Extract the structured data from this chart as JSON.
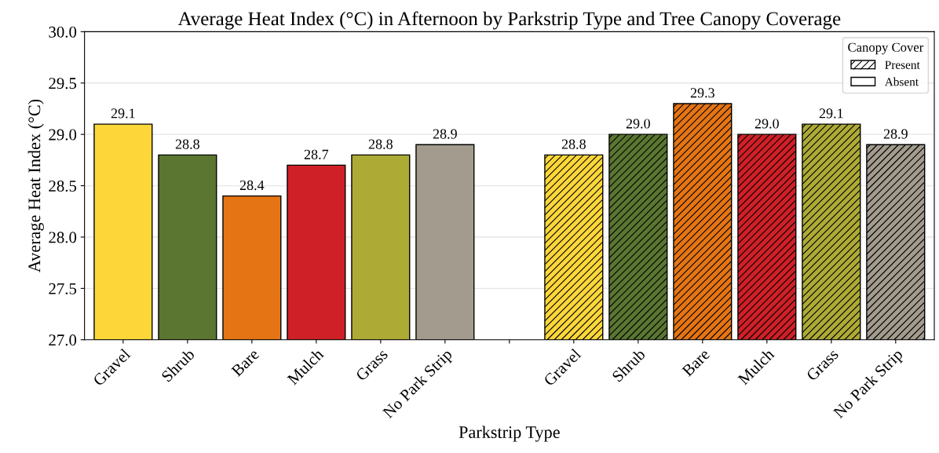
{
  "chart_data": {
    "type": "bar",
    "title": "Average Heat Index (°C) in Afternoon by Parkstrip Type and Tree Canopy Coverage",
    "xlabel": "Parkstrip Type",
    "ylabel": "Average Heat Index (°C)",
    "legend_title": "Canopy Cover",
    "categories": [
      "Gravel",
      "Shrub",
      "Bare",
      "Mulch",
      "Grass",
      "No Park Strip",
      null,
      "Gravel",
      "Shrub",
      "Bare",
      "Mulch",
      "Grass",
      "No Park Strip"
    ],
    "series": [
      {
        "name": "Present",
        "color": "#ffffff",
        "value_labels": [
          null,
          null,
          null,
          null,
          null,
          null,
          null,
          "28.8",
          "29.0",
          "29.3",
          "29.0",
          "29.1",
          "28.9"
        ],
        "colors": [
          null,
          null,
          null,
          null,
          null,
          null,
          null,
          "#fdd73a",
          "#5a7631",
          "#e57514",
          "#cf2027",
          "#adaa36",
          "#a39c8e"
        ],
        "values": [
          null,
          null,
          null,
          null,
          null,
          null,
          null,
          28.8,
          29.0,
          29.3,
          29.0,
          29.1,
          28.9
        ]
      },
      {
        "name": "Absent",
        "color": "#ffffff",
        "value_labels": [
          "29.1",
          "28.8",
          "28.4",
          "28.7",
          "28.8",
          "28.9",
          null,
          null,
          null,
          null,
          null,
          null,
          null
        ],
        "colors": [
          "#fdd73a",
          "#5a7631",
          "#e57514",
          "#cf2027",
          "#adaa36",
          "#a39c8e",
          null,
          null,
          null,
          null,
          null,
          null,
          null
        ],
        "values": [
          29.1,
          28.8,
          28.4,
          28.7,
          28.8,
          28.9,
          null,
          null,
          null,
          null,
          null,
          null,
          null
        ]
      }
    ],
    "ylim": [
      27.0,
      30.0
    ],
    "yticks": [
      {
        "value": 27.0,
        "label": "27.0"
      },
      {
        "value": 27.5,
        "label": "27.5"
      },
      {
        "value": 28.0,
        "label": "28.0"
      },
      {
        "value": 28.5,
        "label": "28.5"
      },
      {
        "value": 29.0,
        "label": "29.0"
      },
      {
        "value": 29.5,
        "label": "29.5"
      },
      {
        "value": 30.0,
        "label": "30.0"
      }
    ],
    "grid": "y",
    "legend": "top right"
  }
}
